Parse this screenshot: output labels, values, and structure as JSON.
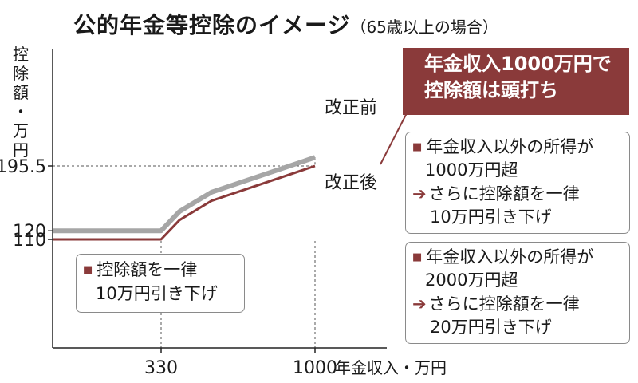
{
  "title": "公的年金等控除のイメージ",
  "subtitle": "（65歳以上の場合）",
  "y_axis_label": [
    "控",
    "除",
    "額",
    "・",
    "万",
    "円"
  ],
  "x_axis_label": "年金収入・万円",
  "callout": {
    "line1": "年金収入1000万円で",
    "line2": "控除額は頭打ち"
  },
  "box_a": {
    "line1": "控除額を一律",
    "line2": "10万円引き下げ"
  },
  "box_b": {
    "line1": "年金収入以外の所得が",
    "line2": "1000万円超",
    "line3": "さらに控除額を一律",
    "line4": "10万円引き下げ"
  },
  "box_c": {
    "line1": "年金収入以外の所得が",
    "line2": "2000万円超",
    "line3": "さらに控除額を一律",
    "line4": "20万円引き下げ"
  },
  "colors": {
    "before": "#a6a6a6",
    "after": "#8a3a3a",
    "accent": "#8a3a3a"
  },
  "chart_data": {
    "type": "line",
    "title": "公的年金等控除のイメージ",
    "xlabel": "年金収入・万円",
    "ylabel": "控除額・万円",
    "x_ticks": [
      330,
      1000
    ],
    "x_tick_labels": [
      "330",
      "1000"
    ],
    "y_ticks": [
      110,
      120,
      195.5
    ],
    "y_tick_labels": [
      "110",
      "120",
      "195.5"
    ],
    "series": [
      {
        "name": "改正前",
        "x": [
          0,
          330,
          410,
          550,
          1000
        ],
        "y": [
          120,
          120,
          142.5,
          165,
          205.5
        ]
      },
      {
        "name": "改正後",
        "x": [
          0,
          330,
          410,
          550,
          1000
        ],
        "y": [
          110,
          110,
          132.5,
          155,
          195.5
        ]
      }
    ]
  }
}
